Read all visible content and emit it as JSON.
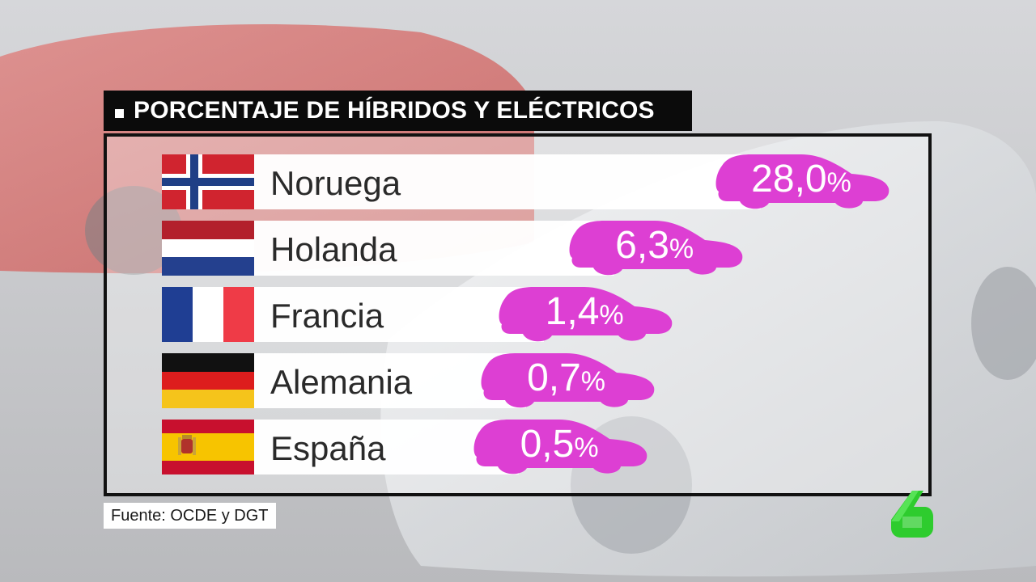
{
  "title": "PORCENTAJE DE HÍBRIDOS Y ELÉCTRICOS",
  "source": "Fuente: OCDE y DGT",
  "colors": {
    "badge": "#dd3fd3",
    "title_bg": "#0b0b0b",
    "logo": "#2ecc2e"
  },
  "chart_data": {
    "type": "bar",
    "title": "PORCENTAJE DE HÍBRIDOS Y ELÉCTRICOS",
    "unit": "%",
    "categories": [
      "Noruega",
      "Holanda",
      "Francia",
      "Alemania",
      "España"
    ],
    "values": [
      28.0,
      6.3,
      1.4,
      0.7,
      0.5
    ],
    "labels": [
      "28,0",
      "6,3",
      "1,4",
      "0,7",
      "0,5"
    ],
    "flags": [
      "norway-flag",
      "netherlands-flag",
      "france-flag",
      "germany-flag",
      "spain-flag"
    ]
  }
}
